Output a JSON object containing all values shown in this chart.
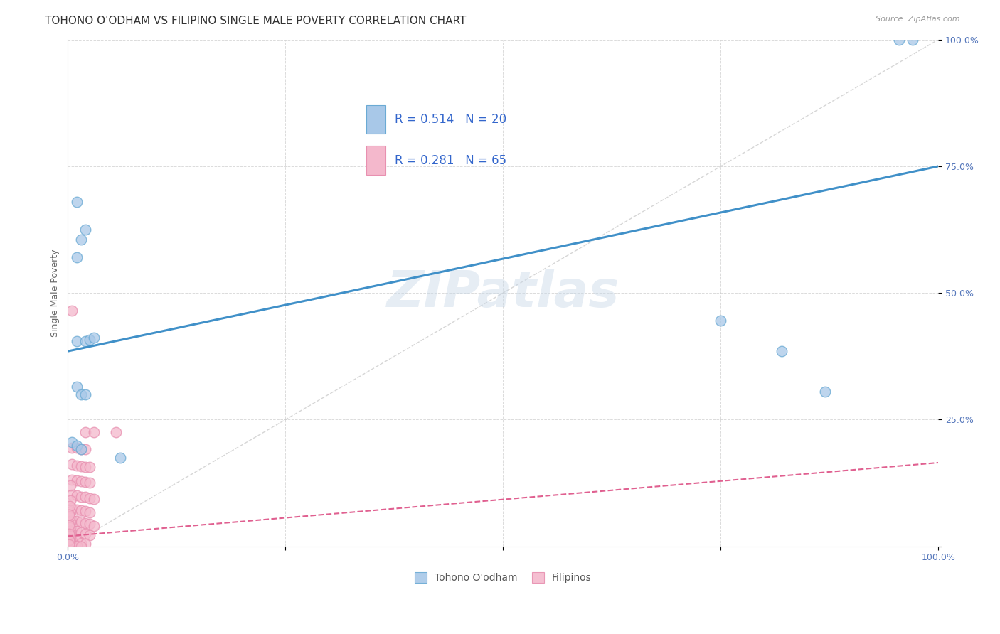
{
  "title": "TOHONO O'ODHAM VS FILIPINO SINGLE MALE POVERTY CORRELATION CHART",
  "source": "Source: ZipAtlas.com",
  "ylabel": "Single Male Poverty",
  "xlim": [
    0,
    1.0
  ],
  "ylim": [
    0,
    1.0
  ],
  "tohono_color": "#a8c8e8",
  "filipino_color": "#f4b8cc",
  "tohono_edge_color": "#6aaad4",
  "filipino_edge_color": "#e890b0",
  "tohono_line_color": "#4090c8",
  "filipino_line_color": "#e06090",
  "diagonal_color": "#cccccc",
  "legend_text_color": "#3366cc",
  "legend_r_color": "#3366cc",
  "legend_n_color": "#3366cc",
  "watermark": "ZIPatlas",
  "tohono_points": [
    [
      0.01,
      0.68
    ],
    [
      0.02,
      0.625
    ],
    [
      0.015,
      0.605
    ],
    [
      0.01,
      0.57
    ],
    [
      0.01,
      0.405
    ],
    [
      0.02,
      0.405
    ],
    [
      0.025,
      0.408
    ],
    [
      0.03,
      0.412
    ],
    [
      0.01,
      0.315
    ],
    [
      0.015,
      0.3
    ],
    [
      0.02,
      0.3
    ],
    [
      0.005,
      0.205
    ],
    [
      0.01,
      0.198
    ],
    [
      0.015,
      0.192
    ],
    [
      0.06,
      0.175
    ],
    [
      0.75,
      0.445
    ],
    [
      0.82,
      0.385
    ],
    [
      0.87,
      0.305
    ],
    [
      0.97,
      1.0
    ],
    [
      0.955,
      1.0
    ]
  ],
  "filipino_points": [
    [
      0.005,
      0.465
    ],
    [
      0.02,
      0.225
    ],
    [
      0.03,
      0.225
    ],
    [
      0.055,
      0.225
    ],
    [
      0.005,
      0.195
    ],
    [
      0.01,
      0.195
    ],
    [
      0.015,
      0.192
    ],
    [
      0.02,
      0.192
    ],
    [
      0.005,
      0.162
    ],
    [
      0.01,
      0.16
    ],
    [
      0.015,
      0.158
    ],
    [
      0.02,
      0.156
    ],
    [
      0.025,
      0.156
    ],
    [
      0.005,
      0.132
    ],
    [
      0.01,
      0.13
    ],
    [
      0.015,
      0.128
    ],
    [
      0.02,
      0.127
    ],
    [
      0.025,
      0.125
    ],
    [
      0.005,
      0.102
    ],
    [
      0.01,
      0.1
    ],
    [
      0.015,
      0.098
    ],
    [
      0.02,
      0.097
    ],
    [
      0.025,
      0.095
    ],
    [
      0.03,
      0.093
    ],
    [
      0.005,
      0.075
    ],
    [
      0.01,
      0.073
    ],
    [
      0.015,
      0.071
    ],
    [
      0.02,
      0.069
    ],
    [
      0.025,
      0.067
    ],
    [
      0.005,
      0.052
    ],
    [
      0.01,
      0.05
    ],
    [
      0.015,
      0.048
    ],
    [
      0.02,
      0.046
    ],
    [
      0.025,
      0.044
    ],
    [
      0.03,
      0.04
    ],
    [
      0.005,
      0.032
    ],
    [
      0.01,
      0.03
    ],
    [
      0.015,
      0.028
    ],
    [
      0.02,
      0.025
    ],
    [
      0.025,
      0.022
    ],
    [
      0.005,
      0.012
    ],
    [
      0.01,
      0.01
    ],
    [
      0.015,
      0.007
    ],
    [
      0.02,
      0.005
    ],
    [
      0.005,
      0.002
    ],
    [
      0.01,
      0.001
    ],
    [
      0.015,
      0.0
    ],
    [
      0.003,
      0.12
    ],
    [
      0.003,
      0.09
    ],
    [
      0.003,
      0.068
    ],
    [
      0.003,
      0.048
    ],
    [
      0.003,
      0.03
    ],
    [
      0.003,
      0.015
    ],
    [
      0.002,
      0.08
    ],
    [
      0.002,
      0.058
    ],
    [
      0.002,
      0.038
    ],
    [
      0.002,
      0.02
    ],
    [
      0.002,
      0.008
    ],
    [
      0.001,
      0.062
    ],
    [
      0.001,
      0.042
    ],
    [
      0.001,
      0.025
    ],
    [
      0.001,
      0.012
    ],
    [
      0.001,
      0.003
    ]
  ],
  "tohono_line": {
    "x0": 0.0,
    "y0": 0.385,
    "x1": 1.0,
    "y1": 0.75
  },
  "filipino_line": {
    "x0": 0.0,
    "y0": 0.02,
    "x1": 1.0,
    "y1": 0.165
  },
  "background_color": "#ffffff",
  "grid_color": "#cccccc",
  "title_fontsize": 11,
  "axis_fontsize": 9,
  "tick_fontsize": 9,
  "legend_fontsize": 12,
  "watermark_fontsize": 52,
  "watermark_color": "#c8d8e8",
  "watermark_alpha": 0.45
}
